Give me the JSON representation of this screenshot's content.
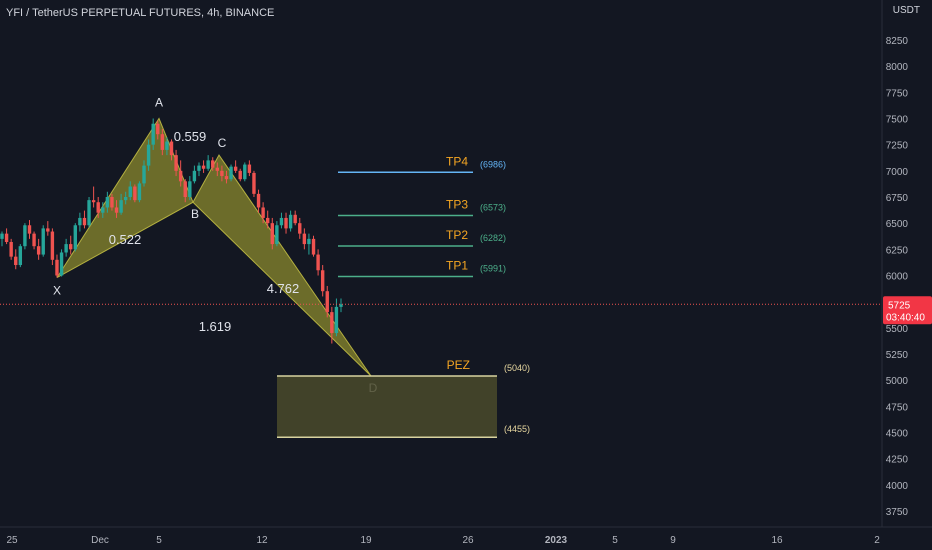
{
  "header": {
    "title": "YFI / TetherUS PERPETUAL FUTURES, 4h, BINANCE"
  },
  "currency_label": "USDT",
  "price_tag": {
    "price": "5725",
    "countdown": "03:40:40"
  },
  "colors": {
    "background": "#131722",
    "up": "#26a69a",
    "down": "#ef5350",
    "pattern_fill": "#8b8a2e",
    "tp4": "#64b5f6",
    "tp_green": "#4caf8a",
    "tp_label": "#f5a623",
    "pez_fill": "#4a4a2a",
    "pez_border": "#d8d3a0"
  },
  "chart_data": {
    "type": "candlestick",
    "title": "YFI / TetherUS PERPETUAL FUTURES, 4h, BINANCE",
    "y_axis": {
      "ticks": [
        3750,
        4000,
        4250,
        4500,
        4750,
        5000,
        5250,
        5500,
        6000,
        6250,
        6500,
        6750,
        7000,
        7250,
        7500,
        7750,
        8000,
        8250
      ],
      "range": [
        3650,
        8450
      ]
    },
    "x_axis": {
      "ticks": [
        "25",
        "Dec",
        "5",
        "12",
        "19",
        "26",
        "2023",
        "5",
        "9",
        "16",
        "2"
      ]
    },
    "last_price": 5725,
    "candles": [
      [
        6350,
        6420,
        6280,
        6400
      ],
      [
        6400,
        6450,
        6300,
        6320
      ],
      [
        6320,
        6350,
        6150,
        6180
      ],
      [
        6180,
        6250,
        6060,
        6100
      ],
      [
        6100,
        6300,
        6080,
        6280
      ],
      [
        6280,
        6500,
        6250,
        6480
      ],
      [
        6480,
        6530,
        6350,
        6400
      ],
      [
        6400,
        6420,
        6250,
        6280
      ],
      [
        6280,
        6350,
        6150,
        6200
      ],
      [
        6200,
        6480,
        6180,
        6450
      ],
      [
        6450,
        6520,
        6380,
        6420
      ],
      [
        6420,
        6450,
        6100,
        6150
      ],
      [
        6150,
        6200,
        5980,
        6000
      ],
      [
        6000,
        6250,
        5990,
        6220
      ],
      [
        6220,
        6350,
        6180,
        6300
      ],
      [
        6300,
        6380,
        6200,
        6250
      ],
      [
        6250,
        6500,
        6230,
        6480
      ],
      [
        6480,
        6600,
        6420,
        6550
      ],
      [
        6550,
        6620,
        6450,
        6480
      ],
      [
        6480,
        6750,
        6460,
        6720
      ],
      [
        6720,
        6850,
        6650,
        6700
      ],
      [
        6700,
        6750,
        6550,
        6600
      ],
      [
        6600,
        6700,
        6550,
        6650
      ],
      [
        6650,
        6800,
        6600,
        6750
      ],
      [
        6750,
        6780,
        6620,
        6650
      ],
      [
        6650,
        6720,
        6550,
        6600
      ],
      [
        6600,
        6780,
        6580,
        6720
      ],
      [
        6720,
        6800,
        6680,
        6750
      ],
      [
        6750,
        6900,
        6720,
        6850
      ],
      [
        6850,
        6870,
        6700,
        6720
      ],
      [
        6720,
        6900,
        6700,
        6880
      ],
      [
        6880,
        7100,
        6850,
        7050
      ],
      [
        7050,
        7300,
        7000,
        7250
      ],
      [
        7250,
        7500,
        7200,
        7450
      ],
      [
        7450,
        7480,
        7300,
        7350
      ],
      [
        7350,
        7400,
        7150,
        7200
      ],
      [
        7200,
        7320,
        7150,
        7280
      ],
      [
        7280,
        7300,
        7100,
        7150
      ],
      [
        7150,
        7200,
        6950,
        7000
      ],
      [
        7000,
        7100,
        6850,
        6900
      ],
      [
        6900,
        6920,
        6700,
        6750
      ],
      [
        6750,
        6950,
        6720,
        6900
      ],
      [
        6900,
        7050,
        6880,
        7000
      ],
      [
        7000,
        7080,
        6950,
        7050
      ],
      [
        7050,
        7100,
        6980,
        7020
      ],
      [
        7020,
        7150,
        7000,
        7100
      ],
      [
        7100,
        7130,
        7000,
        7030
      ],
      [
        7030,
        7080,
        6950,
        7000
      ],
      [
        7000,
        7050,
        6900,
        6950
      ],
      [
        6950,
        7000,
        6880,
        6920
      ],
      [
        6920,
        7060,
        6900,
        7040
      ],
      [
        7040,
        7100,
        6980,
        7000
      ],
      [
        7000,
        7020,
        6900,
        6920
      ],
      [
        6920,
        7080,
        6900,
        7060
      ],
      [
        7060,
        7100,
        6950,
        6980
      ],
      [
        6980,
        7000,
        6750,
        6780
      ],
      [
        6780,
        6820,
        6600,
        6650
      ],
      [
        6650,
        6700,
        6500,
        6550
      ],
      [
        6550,
        6620,
        6450,
        6500
      ],
      [
        6500,
        6550,
        6250,
        6300
      ],
      [
        6300,
        6520,
        6280,
        6480
      ],
      [
        6480,
        6600,
        6450,
        6550
      ],
      [
        6550,
        6600,
        6400,
        6450
      ],
      [
        6450,
        6620,
        6420,
        6580
      ],
      [
        6580,
        6620,
        6480,
        6500
      ],
      [
        6500,
        6550,
        6350,
        6400
      ],
      [
        6400,
        6450,
        6250,
        6300
      ],
      [
        6300,
        6400,
        6200,
        6350
      ],
      [
        6350,
        6380,
        6180,
        6200
      ],
      [
        6200,
        6250,
        6000,
        6050
      ],
      [
        6050,
        6100,
        5800,
        5850
      ],
      [
        5850,
        5900,
        5600,
        5650
      ],
      [
        5650,
        5700,
        5350,
        5450
      ],
      [
        5450,
        5780,
        5420,
        5700
      ],
      [
        5700,
        5780,
        5650,
        5725
      ]
    ],
    "harmonic_pattern": {
      "points": [
        {
          "label": "X",
          "price": 5980
        },
        {
          "label": "A",
          "price": 7500
        },
        {
          "label": "B",
          "price": 6700
        },
        {
          "label": "C",
          "price": 7150
        },
        {
          "label": "D",
          "price": 5040
        }
      ],
      "ratios": [
        "0.559",
        "0.522",
        "4.762",
        "1.619"
      ]
    },
    "targets": [
      {
        "label": "TP4",
        "price": 6986,
        "price_label": "(6986)"
      },
      {
        "label": "TP3",
        "price": 6573,
        "price_label": "(6573)"
      },
      {
        "label": "TP2",
        "price": 6282,
        "price_label": "(6282)"
      },
      {
        "label": "TP1",
        "price": 5991,
        "price_label": "(5991)"
      }
    ],
    "pez": {
      "label": "PEZ",
      "top": 5040,
      "bottom": 4455,
      "top_label": "(5040)",
      "bottom_label": "(4455)"
    }
  }
}
